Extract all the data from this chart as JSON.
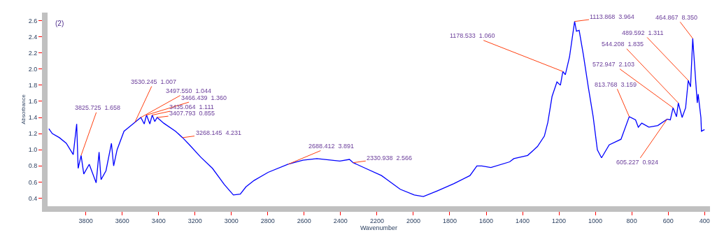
{
  "chart_data": {
    "type": "line",
    "xlabel": "Wavenumber",
    "ylabel": "Absorbance",
    "x": [
      4003,
      3984,
      3945,
      3907,
      3869,
      3850,
      3842,
      3825.725,
      3811,
      3781,
      3743,
      3727,
      3716,
      3689,
      3659,
      3647,
      3628,
      3590,
      3563,
      3530.245,
      3497.55,
      3479,
      3466.439,
      3448,
      3435.064,
      3421,
      3407.793,
      3372,
      3307,
      3268.145,
      3230,
      3169,
      3104,
      3039,
      2989,
      2951,
      2920,
      2875,
      2798,
      2688.412,
      2607,
      2530,
      2404,
      2351,
      2330.938,
      2263,
      2175,
      2072,
      1995,
      1945,
      1869,
      1777,
      1689,
      1651,
      1624,
      1574,
      1471,
      1448,
      1372,
      1318,
      1280,
      1261,
      1238,
      1211,
      1192,
      1178.533,
      1165,
      1142,
      1113.868,
      1104,
      1089,
      1066,
      1039,
      1012,
      989,
      966,
      924,
      859,
      813.768,
      779,
      764,
      745,
      706,
      657,
      605.227,
      588,
      572.947,
      554,
      544.208,
      523,
      504,
      489.592,
      477,
      464.867,
      447,
      440,
      435,
      420,
      417,
      400
    ],
    "series": [
      {
        "color": "#0000ff",
        "values": [
          1.26,
          1.2,
          1.15,
          1.08,
          0.94,
          1.32,
          0.77,
          0.93,
          0.7,
          0.82,
          0.59,
          0.97,
          0.63,
          0.74,
          1.08,
          0.8,
          1.0,
          1.23,
          1.28,
          1.34,
          1.4,
          1.32,
          1.43,
          1.32,
          1.43,
          1.35,
          1.4,
          1.33,
          1.23,
          1.15,
          1.06,
          0.91,
          0.77,
          0.57,
          0.44,
          0.45,
          0.54,
          0.62,
          0.72,
          0.82,
          0.87,
          0.89,
          0.86,
          0.88,
          0.84,
          0.77,
          0.68,
          0.51,
          0.44,
          0.42,
          0.49,
          0.58,
          0.68,
          0.8,
          0.8,
          0.78,
          0.85,
          0.89,
          0.93,
          1.04,
          1.17,
          1.34,
          1.66,
          1.84,
          1.8,
          1.97,
          1.93,
          2.15,
          2.59,
          2.47,
          2.48,
          2.18,
          1.78,
          1.41,
          1.0,
          0.9,
          1.06,
          1.13,
          1.41,
          1.37,
          1.28,
          1.33,
          1.28,
          1.3,
          1.38,
          1.37,
          1.52,
          1.41,
          1.58,
          1.4,
          1.52,
          1.86,
          1.78,
          2.38,
          1.8,
          1.58,
          1.69,
          1.4,
          1.23,
          1.25
        ]
      }
    ],
    "xlim": [
      4010,
      370
    ],
    "xticks": [
      3800,
      3600,
      3400,
      3200,
      3000,
      2800,
      2600,
      2400,
      2200,
      2000,
      1800,
      1600,
      1400,
      1200,
      1000,
      800,
      600,
      400
    ],
    "ylim": [
      0.3,
      2.7
    ],
    "yticks": [
      0.4,
      0.6,
      0.8,
      {
        "value": 1.0,
        "label": "1.0"
      },
      1.2,
      1.4,
      1.6,
      1.8,
      {
        "value": 2.0,
        "label": "2.0"
      },
      2.2,
      2.4,
      2.6
    ],
    "legend": false,
    "marker": "none",
    "line_style": "solid",
    "annotations": [
      "(2)",
      {
        "text": "3825.725  1.658",
        "x": 3825.725,
        "y": 0.93
      },
      {
        "text": "3530.245  1.007",
        "x": 3530.245,
        "y": 1.34
      },
      {
        "text": "3497.550  1.044",
        "x": 3497.55,
        "y": 1.4
      },
      {
        "text": "3466.439  1.360",
        "x": 3466.439,
        "y": 1.43
      },
      {
        "text": "3435.064  1.111",
        "x": 3435.064,
        "y": 1.43
      },
      {
        "text": "3407.793  0.855",
        "x": 3407.793,
        "y": 1.4
      },
      {
        "text": "3268.145  4.231",
        "x": 3268.145,
        "y": 1.15
      },
      {
        "text": "2688.412  3.891",
        "x": 2688.412,
        "y": 0.82
      },
      {
        "text": "2330.938  2.566",
        "x": 2330.938,
        "y": 0.84
      },
      {
        "text": "1178.533  1.060",
        "x": 1178.533,
        "y": 1.97
      },
      {
        "text": "1113.868  3.964",
        "x": 1113.868,
        "y": 2.59
      },
      {
        "text": "813.768  3.159",
        "x": 813.768,
        "y": 1.41
      },
      {
        "text": "605.227  0.924",
        "x": 605.227,
        "y": 1.38
      },
      {
        "text": "572.947  2.103",
        "x": 572.947,
        "y": 1.52
      },
      {
        "text": "544.208  1.835",
        "x": 544.208,
        "y": 1.58
      },
      {
        "text": "489.592  1.311",
        "x": 489.592,
        "y": 1.86
      },
      {
        "text": "464.867  8.350",
        "x": 464.867,
        "y": 2.38
      }
    ]
  }
}
